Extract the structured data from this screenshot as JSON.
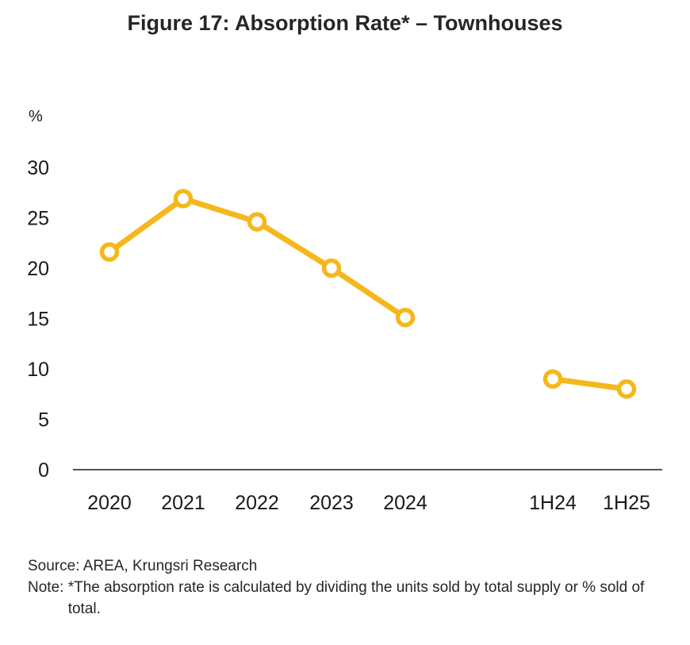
{
  "title": "Figure 17: Absorption Rate* – Townhouses",
  "chart_data": {
    "type": "line",
    "title": "Figure 17: Absorption Rate* – Townhouses",
    "ylabel": "%",
    "ylim": [
      0,
      30
    ],
    "yticks": [
      0,
      5,
      10,
      15,
      20,
      25,
      30
    ],
    "grid": false,
    "categories": [
      "2020",
      "2021",
      "2022",
      "2023",
      "2024",
      "1H24",
      "1H25"
    ],
    "series": [
      {
        "values": [
          21.6,
          26.9,
          24.6,
          20.0,
          15.1,
          null,
          null
        ]
      },
      {
        "values": [
          null,
          null,
          null,
          null,
          null,
          9.0,
          8.0
        ]
      }
    ],
    "series_color": "#F5B81C"
  },
  "footer": {
    "source": "Source: AREA, Krungsri Research",
    "note_label": "Note: ",
    "note_text": "*The absorption rate is calculated by dividing the units sold by total supply or % sold of total."
  }
}
